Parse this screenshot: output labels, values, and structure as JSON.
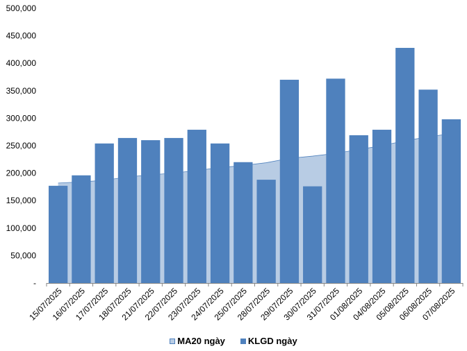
{
  "chart_data": {
    "type": "bar",
    "categories": [
      "15/07/2025",
      "16/07/2025",
      "17/07/2025",
      "18/07/2025",
      "21/07/2025",
      "22/07/2025",
      "23/07/2025",
      "24/07/2025",
      "25/07/2025",
      "28/07/2025",
      "29/07/2025",
      "30/07/2025",
      "31/07/2025",
      "01/08/2025",
      "04/08/2025",
      "05/08/2025",
      "06/08/2025",
      "07/08/2025"
    ],
    "series": [
      {
        "name": "MA20 ngày",
        "kind": "area",
        "color": "#b8cce4",
        "values": [
          182000,
          184000,
          187000,
          193000,
          197000,
          200000,
          205000,
          210000,
          214000,
          219000,
          227000,
          231000,
          236000,
          243000,
          250000,
          259000,
          266000,
          272000
        ]
      },
      {
        "name": "KLGD ngày",
        "kind": "bar",
        "color": "#4f81bd",
        "values": [
          177000,
          196000,
          254000,
          264000,
          260000,
          264000,
          279000,
          254000,
          220000,
          188000,
          370000,
          176000,
          372000,
          269000,
          279000,
          428000,
          352000,
          298000
        ]
      }
    ],
    "ylim": [
      0,
      500000
    ],
    "yticks": [
      0,
      50000,
      100000,
      150000,
      200000,
      250000,
      300000,
      350000,
      400000,
      450000,
      500000
    ],
    "ytick_labels": [
      "-",
      "50,000",
      "100,000",
      "150,000",
      "200,000",
      "250,000",
      "300,000",
      "350,000",
      "400,000",
      "450,000",
      "500,000"
    ],
    "legend_position": "bottom",
    "grid": false
  },
  "legend": {
    "area_label": "MA20 ngày",
    "bar_label": "KLGD ngày"
  }
}
